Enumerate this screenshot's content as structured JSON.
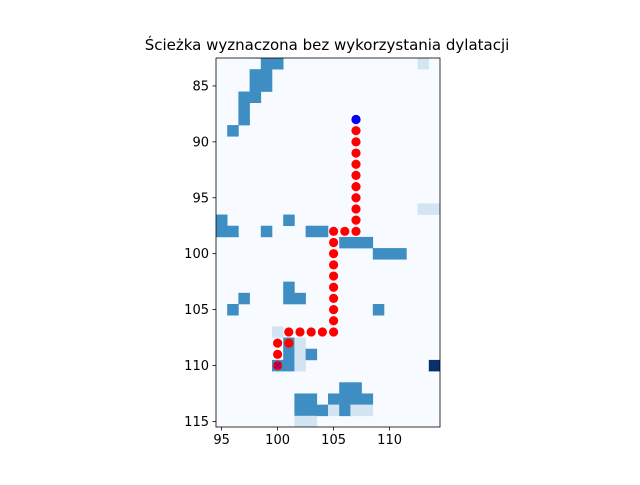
{
  "chart_data": {
    "type": "heatmap",
    "title": "Ścieżka wyznaczona bez wykorzystania dylatacji",
    "xlabel": "",
    "ylabel": "",
    "xlim": [
      94.5,
      114.5
    ],
    "ylim": [
      115.5,
      82.5
    ],
    "y_axis_inverted": true,
    "grid": false,
    "colormap": "Blues",
    "background_color": "#f7fbff",
    "x_ticks": [
      95,
      100,
      105,
      110
    ],
    "y_ticks": [
      85,
      90,
      95,
      100,
      105,
      110,
      115
    ],
    "cells": [
      {
        "x": 98,
        "y": 82,
        "level": 2
      },
      {
        "x": 99,
        "y": 82,
        "level": 2
      },
      {
        "x": 99,
        "y": 83,
        "level": 2
      },
      {
        "x": 100,
        "y": 83,
        "level": 2
      },
      {
        "x": 113,
        "y": 83,
        "level": 1
      },
      {
        "x": 98,
        "y": 84,
        "level": 2
      },
      {
        "x": 99,
        "y": 84,
        "level": 2
      },
      {
        "x": 98,
        "y": 85,
        "level": 2
      },
      {
        "x": 99,
        "y": 85,
        "level": 2
      },
      {
        "x": 97,
        "y": 86,
        "level": 2
      },
      {
        "x": 98,
        "y": 86,
        "level": 2
      },
      {
        "x": 97,
        "y": 87,
        "level": 2
      },
      {
        "x": 97,
        "y": 88,
        "level": 2
      },
      {
        "x": 96,
        "y": 89,
        "level": 2
      },
      {
        "x": 113,
        "y": 96,
        "level": 1
      },
      {
        "x": 114,
        "y": 96,
        "level": 1
      },
      {
        "x": 95,
        "y": 97,
        "level": 2
      },
      {
        "x": 101,
        "y": 97,
        "level": 2
      },
      {
        "x": 95,
        "y": 98,
        "level": 2
      },
      {
        "x": 96,
        "y": 98,
        "level": 2
      },
      {
        "x": 99,
        "y": 98,
        "level": 2
      },
      {
        "x": 103,
        "y": 98,
        "level": 2
      },
      {
        "x": 104,
        "y": 98,
        "level": 2
      },
      {
        "x": 106,
        "y": 99,
        "level": 2
      },
      {
        "x": 107,
        "y": 99,
        "level": 2
      },
      {
        "x": 108,
        "y": 99,
        "level": 2
      },
      {
        "x": 109,
        "y": 100,
        "level": 2
      },
      {
        "x": 110,
        "y": 100,
        "level": 2
      },
      {
        "x": 111,
        "y": 100,
        "level": 2
      },
      {
        "x": 101,
        "y": 103,
        "level": 2
      },
      {
        "x": 97,
        "y": 104,
        "level": 2
      },
      {
        "x": 101,
        "y": 104,
        "level": 2
      },
      {
        "x": 102,
        "y": 104,
        "level": 2
      },
      {
        "x": 96,
        "y": 105,
        "level": 2
      },
      {
        "x": 109,
        "y": 105,
        "level": 2
      },
      {
        "x": 100,
        "y": 107,
        "level": 1
      },
      {
        "x": 101,
        "y": 108,
        "level": 2
      },
      {
        "x": 102,
        "y": 108,
        "level": 1
      },
      {
        "x": 101,
        "y": 109,
        "level": 2
      },
      {
        "x": 102,
        "y": 109,
        "level": 1
      },
      {
        "x": 103,
        "y": 109,
        "level": 2
      },
      {
        "x": 100,
        "y": 110,
        "level": 2
      },
      {
        "x": 101,
        "y": 110,
        "level": 2
      },
      {
        "x": 102,
        "y": 110,
        "level": 1
      },
      {
        "x": 114,
        "y": 110,
        "level": 3
      },
      {
        "x": 106,
        "y": 112,
        "level": 2
      },
      {
        "x": 107,
        "y": 112,
        "level": 2
      },
      {
        "x": 102,
        "y": 113,
        "level": 2
      },
      {
        "x": 103,
        "y": 113,
        "level": 2
      },
      {
        "x": 105,
        "y": 113,
        "level": 2
      },
      {
        "x": 106,
        "y": 113,
        "level": 2
      },
      {
        "x": 107,
        "y": 113,
        "level": 2
      },
      {
        "x": 108,
        "y": 113,
        "level": 2
      },
      {
        "x": 102,
        "y": 114,
        "level": 2
      },
      {
        "x": 103,
        "y": 114,
        "level": 2
      },
      {
        "x": 104,
        "y": 114,
        "level": 2
      },
      {
        "x": 105,
        "y": 114,
        "level": 1
      },
      {
        "x": 106,
        "y": 114,
        "level": 2
      },
      {
        "x": 107,
        "y": 114,
        "level": 1
      },
      {
        "x": 108,
        "y": 114,
        "level": 1
      },
      {
        "x": 102,
        "y": 115,
        "level": 1
      },
      {
        "x": 103,
        "y": 115,
        "level": 1
      }
    ],
    "level_colors": {
      "1": "#d3e4f3",
      "2": "#3e8ec4",
      "3": "#08306b"
    },
    "path": {
      "color": "#ff0000",
      "points": [
        [
          107,
          88
        ],
        [
          107,
          89
        ],
        [
          107,
          90
        ],
        [
          107,
          91
        ],
        [
          107,
          92
        ],
        [
          107,
          93
        ],
        [
          107,
          94
        ],
        [
          107,
          95
        ],
        [
          107,
          96
        ],
        [
          107,
          97
        ],
        [
          107,
          98
        ],
        [
          106,
          98
        ],
        [
          105,
          98
        ],
        [
          105,
          99
        ],
        [
          105,
          100
        ],
        [
          105,
          101
        ],
        [
          105,
          102
        ],
        [
          105,
          103
        ],
        [
          105,
          104
        ],
        [
          105,
          105
        ],
        [
          105,
          106
        ],
        [
          105,
          107
        ],
        [
          104,
          107
        ],
        [
          103,
          107
        ],
        [
          102,
          107
        ],
        [
          101,
          107
        ],
        [
          101,
          108
        ],
        [
          100,
          108
        ],
        [
          100,
          109
        ],
        [
          100,
          110
        ]
      ]
    },
    "start": {
      "x": 107,
      "y": 88,
      "color": "#0000ff"
    },
    "goal": {
      "x": 100,
      "y": 110,
      "color": "#800080",
      "marker": "x"
    }
  }
}
